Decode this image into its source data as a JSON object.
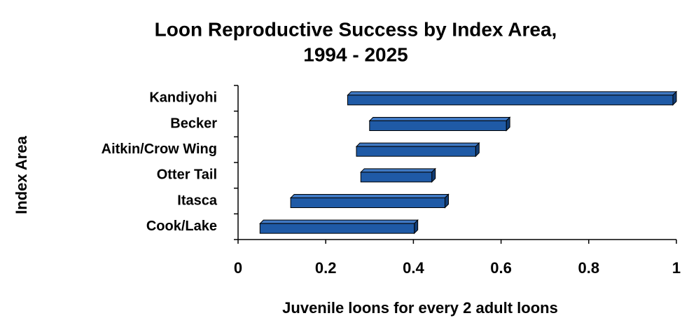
{
  "chart_data": {
    "type": "range_bar",
    "title": [
      "Loon Reproductive Success by Index Area,",
      "1994 - 2025"
    ],
    "x_label": "Juvenile loons for every 2 adult loons",
    "y_label": "Index Area",
    "categories": [
      "Kandiyohi",
      "Becker",
      "Aitkin/Crow Wing",
      "Otter Tail",
      "Itasca",
      "Cook/Lake"
    ],
    "values": [
      [
        0.25,
        1.0
      ],
      [
        0.3,
        0.62
      ],
      [
        0.27,
        0.55
      ],
      [
        0.28,
        0.45
      ],
      [
        0.12,
        0.48
      ],
      [
        0.05,
        0.41
      ]
    ],
    "color": "#1f5aa6",
    "xlim": [
      0,
      1
    ],
    "xticks": [
      0,
      0.2,
      0.4,
      0.6,
      0.8,
      1
    ]
  }
}
